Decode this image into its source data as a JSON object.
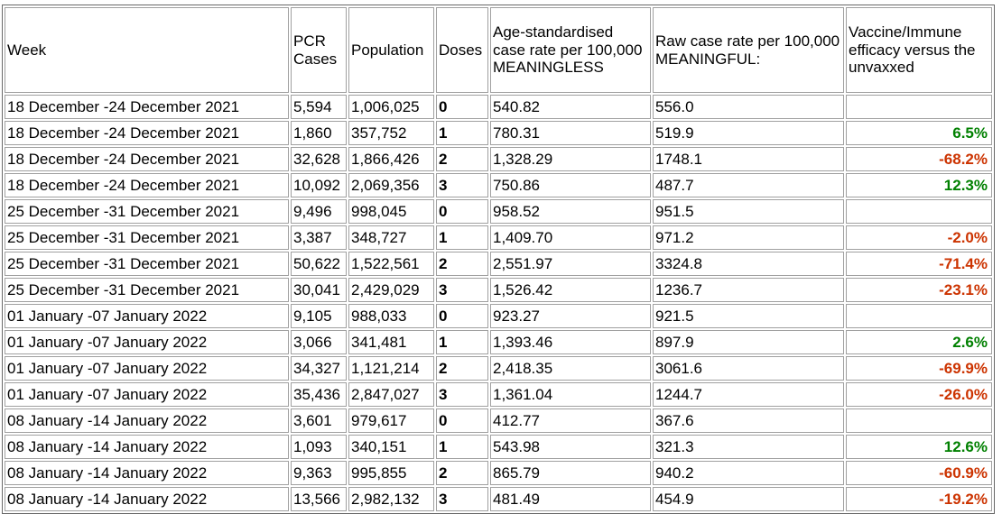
{
  "colors": {
    "positive": "#008000",
    "negative": "#cc3300",
    "text": "#000000",
    "cell_border": "#a0a0a0",
    "outer_border": "#686868",
    "background": "#ffffff"
  },
  "chart_data": {
    "type": "table",
    "columns": [
      "Week",
      "PCR Cases",
      "Population",
      "Doses",
      "Age-standardised case rate per 100,000 MEANINGLESS",
      "Raw case rate per 100,000 MEANINGFUL:",
      "Vaccine/Immune efficacy versus the unvaxxed"
    ],
    "rows": [
      {
        "week": "18 December -24 December 2021",
        "pcr_cases": "5,594",
        "population": "1,006,025",
        "doses": "0",
        "age_std_rate": "540.82",
        "raw_rate": "556.0",
        "efficacy": "",
        "efficacy_trend": null
      },
      {
        "week": "18 December -24 December 2021",
        "pcr_cases": "1,860",
        "population": "357,752",
        "doses": "1",
        "age_std_rate": "780.31",
        "raw_rate": "519.9",
        "efficacy": "6.5%",
        "efficacy_trend": "positive"
      },
      {
        "week": "18 December -24 December 2021",
        "pcr_cases": "32,628",
        "population": "1,866,426",
        "doses": "2",
        "age_std_rate": "1,328.29",
        "raw_rate": "1748.1",
        "efficacy": "-68.2%",
        "efficacy_trend": "negative"
      },
      {
        "week": "18 December -24 December 2021",
        "pcr_cases": "10,092",
        "population": "2,069,356",
        "doses": "3",
        "age_std_rate": "750.86",
        "raw_rate": "487.7",
        "efficacy": "12.3%",
        "efficacy_trend": "positive"
      },
      {
        "week": "25 December -31 December 2021",
        "pcr_cases": "9,496",
        "population": "998,045",
        "doses": "0",
        "age_std_rate": "958.52",
        "raw_rate": "951.5",
        "efficacy": "",
        "efficacy_trend": null
      },
      {
        "week": "25 December -31 December 2021",
        "pcr_cases": "3,387",
        "population": "348,727",
        "doses": "1",
        "age_std_rate": "1,409.70",
        "raw_rate": "971.2",
        "efficacy": "-2.0%",
        "efficacy_trend": "negative"
      },
      {
        "week": "25 December -31 December 2021",
        "pcr_cases": "50,622",
        "population": "1,522,561",
        "doses": "2",
        "age_std_rate": "2,551.97",
        "raw_rate": "3324.8",
        "efficacy": "-71.4%",
        "efficacy_trend": "negative"
      },
      {
        "week": "25 December -31 December 2021",
        "pcr_cases": "30,041",
        "population": "2,429,029",
        "doses": "3",
        "age_std_rate": "1,526.42",
        "raw_rate": "1236.7",
        "efficacy": "-23.1%",
        "efficacy_trend": "negative"
      },
      {
        "week": "01 January -07 January 2022",
        "pcr_cases": "9,105",
        "population": "988,033",
        "doses": "0",
        "age_std_rate": "923.27",
        "raw_rate": "921.5",
        "efficacy": "",
        "efficacy_trend": null
      },
      {
        "week": "01 January -07 January 2022",
        "pcr_cases": "3,066",
        "population": "341,481",
        "doses": "1",
        "age_std_rate": "1,393.46",
        "raw_rate": "897.9",
        "efficacy": "2.6%",
        "efficacy_trend": "positive"
      },
      {
        "week": "01 January -07 January 2022",
        "pcr_cases": "34,327",
        "population": "1,121,214",
        "doses": "2",
        "age_std_rate": "2,418.35",
        "raw_rate": "3061.6",
        "efficacy": "-69.9%",
        "efficacy_trend": "negative"
      },
      {
        "week": "01 January -07 January 2022",
        "pcr_cases": "35,436",
        "population": "2,847,027",
        "doses": "3",
        "age_std_rate": "1,361.04",
        "raw_rate": "1244.7",
        "efficacy": "-26.0%",
        "efficacy_trend": "negative"
      },
      {
        "week": "08 January -14 January 2022",
        "pcr_cases": "3,601",
        "population": "979,617",
        "doses": "0",
        "age_std_rate": "412.77",
        "raw_rate": "367.6",
        "efficacy": "",
        "efficacy_trend": null
      },
      {
        "week": "08 January -14 January 2022",
        "pcr_cases": "1,093",
        "population": "340,151",
        "doses": "1",
        "age_std_rate": "543.98",
        "raw_rate": "321.3",
        "efficacy": "12.6%",
        "efficacy_trend": "positive"
      },
      {
        "week": "08 January -14 January 2022",
        "pcr_cases": "9,363",
        "population": "995,855",
        "doses": "2",
        "age_std_rate": "865.79",
        "raw_rate": "940.2",
        "efficacy": "-60.9%",
        "efficacy_trend": "negative"
      },
      {
        "week": "08 January -14 January 2022",
        "pcr_cases": "13,566",
        "population": "2,982,132",
        "doses": "3",
        "age_std_rate": "481.49",
        "raw_rate": "454.9",
        "efficacy": "-19.2%",
        "efficacy_trend": "negative"
      }
    ]
  }
}
